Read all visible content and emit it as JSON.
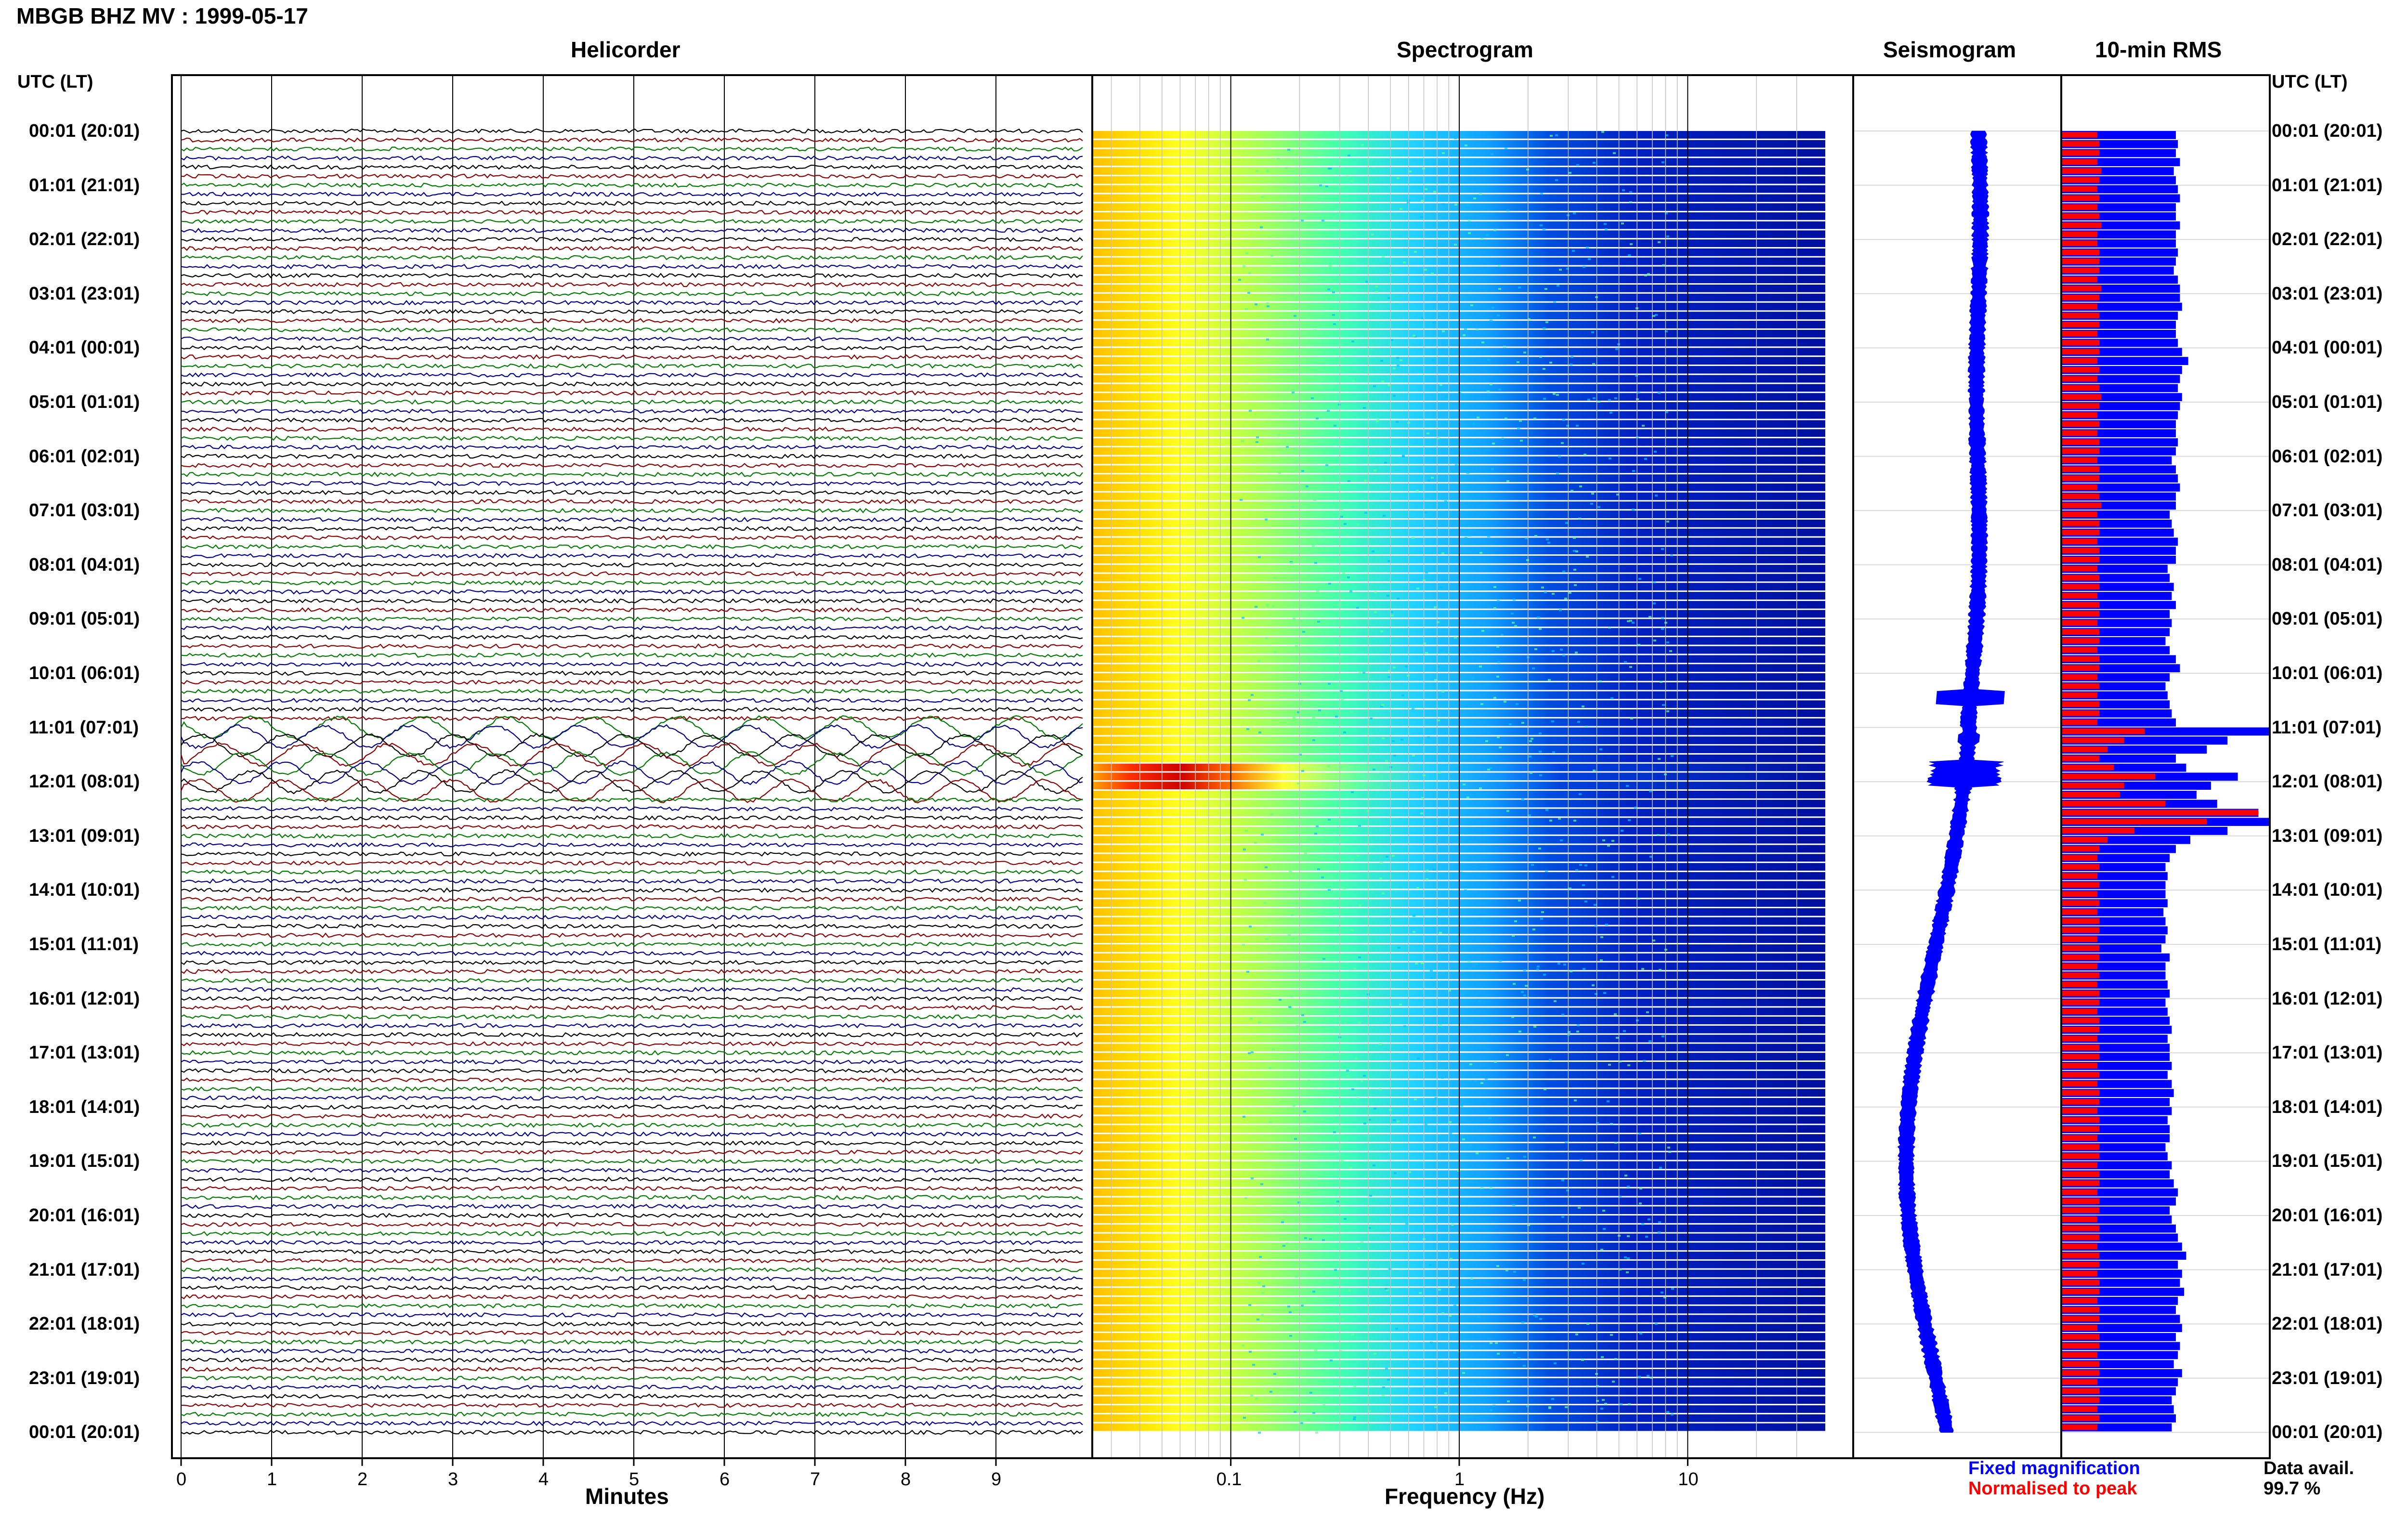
{
  "page": {
    "title": "MBGB BHZ MV : 1999-05-17"
  },
  "panels": {
    "helicorder_title": "Helicorder",
    "spectrogram_title": "Spectrogram",
    "seismogram_title": "Seismogram",
    "rms_title": "10-min RMS"
  },
  "axes": {
    "left_time_header": "UTC (LT)",
    "right_time_header": "UTC (LT)",
    "minutes_label": "Minutes",
    "frequency_label": "Frequency (Hz)"
  },
  "legend": {
    "fixed": "Fixed magnification",
    "normalised": "Normalised to peak",
    "avail_label": "Data avail.",
    "avail_value": "99.7 %"
  },
  "colors": {
    "trace": [
      "#000000",
      "#8b0000",
      "#007a00",
      "#00008b"
    ],
    "rms_fixed": "#0000ff",
    "rms_norm": "#ff0000",
    "seismogram": "#0000ff"
  },
  "chart_data": [
    {
      "type": "line",
      "title": "Helicorder",
      "xlabel": "Minutes",
      "x_ticks": [
        "0",
        "1",
        "2",
        "3",
        "4",
        "5",
        "6",
        "7",
        "8",
        "9"
      ],
      "xlim": [
        0,
        10
      ],
      "y_ticks": [
        "00:01 (20:01)",
        "01:01 (21:01)",
        "02:01 (22:01)",
        "03:01 (23:01)",
        "04:01 (00:01)",
        "05:01 (01:01)",
        "06:01 (02:01)",
        "07:01 (03:01)",
        "08:01 (04:01)",
        "09:01 (05:01)",
        "10:01 (06:01)",
        "11:01 (07:01)",
        "12:01 (08:01)",
        "13:01 (09:01)",
        "14:01 (10:01)",
        "15:01 (11:01)",
        "16:01 (12:01)",
        "17:01 (13:01)",
        "18:01 (14:01)",
        "19:01 (15:01)",
        "20:01 (16:01)",
        "21:01 (17:01)",
        "22:01 (18:01)",
        "23:01 (19:01)",
        "00:01 (20:01)"
      ],
      "traces_per_hour": 6,
      "trace_count": 144
    },
    {
      "type": "heatmap",
      "title": "Spectrogram",
      "xlabel": "Frequency (Hz)",
      "x_scale": "log",
      "x_ticks": [
        "0.1",
        "1",
        "10"
      ],
      "xlim": [
        0.025,
        40
      ],
      "rows": 144
    },
    {
      "type": "line",
      "title": "Seismogram",
      "description_hours": 24
    },
    {
      "type": "bar",
      "title": "10-min RMS",
      "series": [
        {
          "name": "Fixed magnification"
        },
        {
          "name": "Normalised to peak"
        }
      ],
      "bars": 144,
      "fixed_values": [
        0.55,
        0.56,
        0.55,
        0.57,
        0.54,
        0.55,
        0.56,
        0.57,
        0.55,
        0.55,
        0.57,
        0.55,
        0.55,
        0.56,
        0.55,
        0.54,
        0.56,
        0.57,
        0.57,
        0.58,
        0.56,
        0.55,
        0.55,
        0.56,
        0.58,
        0.61,
        0.58,
        0.57,
        0.56,
        0.58,
        0.57,
        0.56,
        0.55,
        0.55,
        0.56,
        0.55,
        0.53,
        0.55,
        0.56,
        0.57,
        0.55,
        0.55,
        0.52,
        0.53,
        0.54,
        0.56,
        0.55,
        0.55,
        0.51,
        0.52,
        0.54,
        0.53,
        0.55,
        0.52,
        0.53,
        0.52,
        0.5,
        0.52,
        0.55,
        0.57,
        0.52,
        0.5,
        0.51,
        0.52,
        0.53,
        0.55,
        1.0,
        0.8,
        0.7,
        0.55,
        0.6,
        0.85,
        0.72,
        0.65,
        0.75,
        0.95,
        1.0,
        0.8,
        0.62,
        0.55,
        0.52,
        0.5,
        0.51,
        0.5,
        0.5,
        0.51,
        0.49,
        0.5,
        0.51,
        0.5,
        0.48,
        0.52,
        0.5,
        0.5,
        0.51,
        0.52,
        0.5,
        0.51,
        0.52,
        0.53,
        0.51,
        0.52,
        0.52,
        0.53,
        0.51,
        0.53,
        0.54,
        0.52,
        0.53,
        0.51,
        0.52,
        0.52,
        0.5,
        0.51,
        0.53,
        0.52,
        0.54,
        0.56,
        0.55,
        0.52,
        0.53,
        0.55,
        0.56,
        0.58,
        0.6,
        0.56,
        0.58,
        0.57,
        0.59,
        0.56,
        0.55,
        0.57,
        0.58,
        0.55,
        0.57,
        0.56,
        0.54,
        0.58,
        0.56,
        0.55,
        0.53,
        0.54,
        0.55,
        0.53
      ],
      "norm_values": [
        0.17,
        0.18,
        0.18,
        0.17,
        0.19,
        0.18,
        0.17,
        0.18,
        0.17,
        0.18,
        0.19,
        0.17,
        0.17,
        0.18,
        0.18,
        0.18,
        0.17,
        0.19,
        0.18,
        0.17,
        0.18,
        0.18,
        0.17,
        0.18,
        0.18,
        0.17,
        0.18,
        0.17,
        0.18,
        0.19,
        0.18,
        0.17,
        0.18,
        0.17,
        0.18,
        0.18,
        0.17,
        0.18,
        0.18,
        0.17,
        0.18,
        0.19,
        0.17,
        0.18,
        0.18,
        0.17,
        0.18,
        0.18,
        0.17,
        0.18,
        0.18,
        0.17,
        0.18,
        0.18,
        0.17,
        0.18,
        0.18,
        0.17,
        0.18,
        0.18,
        0.17,
        0.18,
        0.17,
        0.18,
        0.18,
        0.17,
        0.4,
        0.3,
        0.22,
        0.18,
        0.25,
        0.45,
        0.3,
        0.28,
        0.5,
        0.95,
        0.7,
        0.35,
        0.22,
        0.18,
        0.17,
        0.18,
        0.17,
        0.18,
        0.17,
        0.18,
        0.17,
        0.18,
        0.18,
        0.17,
        0.18,
        0.18,
        0.17,
        0.18,
        0.17,
        0.18,
        0.18,
        0.17,
        0.18,
        0.18,
        0.17,
        0.18,
        0.18,
        0.17,
        0.18,
        0.17,
        0.18,
        0.18,
        0.17,
        0.18,
        0.18,
        0.17,
        0.18,
        0.18,
        0.17,
        0.18,
        0.18,
        0.17,
        0.18,
        0.18,
        0.17,
        0.18,
        0.18,
        0.17,
        0.18,
        0.18,
        0.17,
        0.18,
        0.18,
        0.17,
        0.18,
        0.18,
        0.17,
        0.18,
        0.18,
        0.17,
        0.18,
        0.18,
        0.17,
        0.18,
        0.18,
        0.17,
        0.18,
        0.17
      ]
    }
  ]
}
